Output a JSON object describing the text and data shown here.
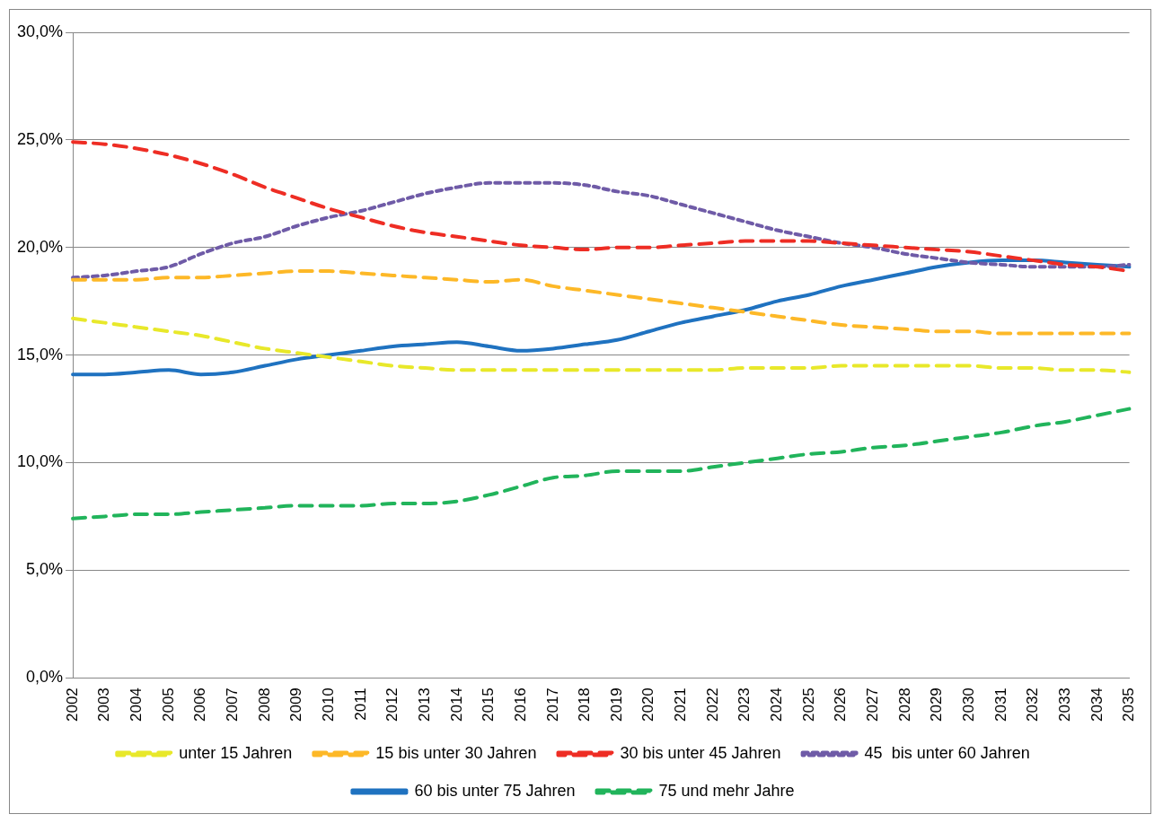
{
  "chart_data": {
    "type": "line",
    "categories": [
      "2002",
      "2003",
      "2004",
      "2005",
      "2006",
      "2007",
      "2008",
      "2009",
      "2010",
      "2011",
      "2012",
      "2013",
      "2014",
      "2015",
      "2016",
      "2017",
      "2018",
      "2019",
      "2020",
      "2021",
      "2022",
      "2023",
      "2024",
      "2025",
      "2026",
      "2027",
      "2028",
      "2029",
      "2030",
      "2031",
      "2032",
      "2033",
      "2034",
      "2035"
    ],
    "ylim": [
      0,
      30
    ],
    "yticks": [
      {
        "value": 0,
        "label": "0,0%"
      },
      {
        "value": 5,
        "label": "5,0%"
      },
      {
        "value": 10,
        "label": "10,0%"
      },
      {
        "value": 15,
        "label": "15,0%"
      },
      {
        "value": 20,
        "label": "20,0%"
      },
      {
        "value": 25,
        "label": "25,0%"
      },
      {
        "value": 30,
        "label": "30,0%"
      }
    ],
    "grid": "y",
    "legend": "bottom",
    "marker": "none",
    "series": [
      {
        "name": "unter 15 Jahren",
        "color": "#e8e82a",
        "line_style": "dashed",
        "values": [
          16.7,
          16.5,
          16.3,
          16.1,
          15.9,
          15.6,
          15.3,
          15.1,
          14.9,
          14.7,
          14.5,
          14.4,
          14.3,
          14.3,
          14.3,
          14.3,
          14.3,
          14.3,
          14.3,
          14.3,
          14.3,
          14.4,
          14.4,
          14.4,
          14.5,
          14.5,
          14.5,
          14.5,
          14.5,
          14.4,
          14.4,
          14.3,
          14.3,
          14.2
        ]
      },
      {
        "name": "15 bis unter 30 Jahren",
        "color": "#fdb827",
        "line_style": "dashed",
        "values": [
          18.5,
          18.5,
          18.5,
          18.6,
          18.6,
          18.7,
          18.8,
          18.9,
          18.9,
          18.8,
          18.7,
          18.6,
          18.5,
          18.4,
          18.5,
          18.2,
          18.0,
          17.8,
          17.6,
          17.4,
          17.2,
          17.0,
          16.8,
          16.6,
          16.4,
          16.3,
          16.2,
          16.1,
          16.1,
          16.0,
          16.0,
          16.0,
          16.0,
          16.0
        ]
      },
      {
        "name": "30 bis unter 45 Jahren",
        "color": "#ee2d24",
        "line_style": "dashed",
        "values": [
          24.9,
          24.8,
          24.6,
          24.3,
          23.9,
          23.4,
          22.8,
          22.3,
          21.8,
          21.4,
          21.0,
          20.7,
          20.5,
          20.3,
          20.1,
          20.0,
          19.9,
          20.0,
          20.0,
          20.1,
          20.2,
          20.3,
          20.3,
          20.3,
          20.2,
          20.1,
          20.0,
          19.9,
          19.8,
          19.6,
          19.4,
          19.2,
          19.1,
          18.9
        ]
      },
      {
        "name": "45  bis unter 60 Jahren",
        "color": "#6f5ba7",
        "line_style": "dotted",
        "values": [
          18.6,
          18.7,
          18.9,
          19.1,
          19.7,
          20.2,
          20.5,
          21.0,
          21.4,
          21.7,
          22.1,
          22.5,
          22.8,
          23.0,
          23.0,
          23.0,
          22.9,
          22.6,
          22.4,
          22.0,
          21.6,
          21.2,
          20.8,
          20.5,
          20.2,
          20.0,
          19.7,
          19.5,
          19.3,
          19.2,
          19.1,
          19.1,
          19.1,
          19.2
        ]
      },
      {
        "name": "60 bis unter 75 Jahren",
        "color": "#1f72c0",
        "line_style": "solid",
        "values": [
          14.1,
          14.1,
          14.2,
          14.3,
          14.1,
          14.2,
          14.5,
          14.8,
          15.0,
          15.2,
          15.4,
          15.5,
          15.6,
          15.4,
          15.2,
          15.3,
          15.5,
          15.7,
          16.1,
          16.5,
          16.8,
          17.1,
          17.5,
          17.8,
          18.2,
          18.5,
          18.8,
          19.1,
          19.3,
          19.4,
          19.4,
          19.3,
          19.2,
          19.1
        ]
      },
      {
        "name": "75 und mehr Jahre",
        "color": "#21b45b",
        "line_style": "dashed",
        "values": [
          7.4,
          7.5,
          7.6,
          7.6,
          7.7,
          7.8,
          7.9,
          8.0,
          8.0,
          8.0,
          8.1,
          8.1,
          8.2,
          8.5,
          8.9,
          9.3,
          9.4,
          9.6,
          9.6,
          9.6,
          9.8,
          10.0,
          10.2,
          10.4,
          10.5,
          10.7,
          10.8,
          11.0,
          11.2,
          11.4,
          11.7,
          11.9,
          12.2,
          12.5
        ]
      }
    ]
  }
}
